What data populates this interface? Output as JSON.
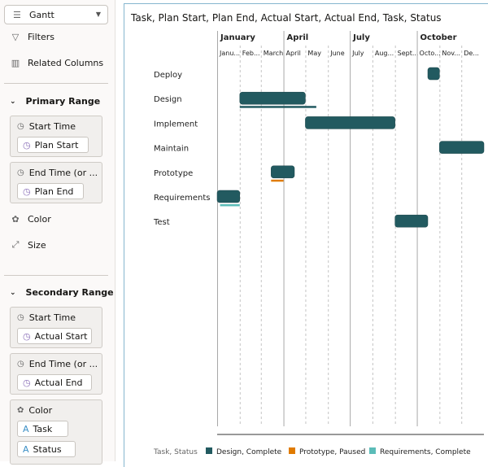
{
  "sidebar": {
    "chart_type": "Gantt",
    "chart_type_icon": "gantt-icon",
    "filters": "Filters",
    "related_columns": "Related Columns",
    "primary": {
      "title": "Primary Range",
      "start_label": "Start Time",
      "start_value": "Plan Start",
      "end_label": "End Time (or ...",
      "end_value": "Plan End",
      "color": "Color",
      "size": "Size"
    },
    "secondary": {
      "title": "Secondary Range",
      "start_label": "Start Time",
      "start_value": "Actual Start",
      "end_label": "End Time (or ...",
      "end_value": "Actual End",
      "color": "Color",
      "color_values": [
        "Task",
        "Status"
      ]
    }
  },
  "chart_data": {
    "type": "gantt",
    "title": "Task, Plan Start, Plan End, Actual Start, Actual End, Task, Status",
    "quarter_labels": [
      "January",
      "April",
      "July",
      "October"
    ],
    "month_labels": [
      "Janu...",
      "Feb...",
      "March",
      "April",
      "May",
      "June",
      "July",
      "Aug...",
      "Sept...",
      "Octo...",
      "Nov...",
      "De..."
    ],
    "tasks": [
      {
        "name": "Deploy",
        "plan": [
          "10-16",
          "10-31"
        ]
      },
      {
        "name": "Design",
        "plan": [
          "02-01",
          "04-30"
        ],
        "actual": [
          "02-01",
          "05-15"
        ],
        "color_key": 0
      },
      {
        "name": "Implement",
        "plan": [
          "05-01",
          "08-31"
        ]
      },
      {
        "name": "Maintain",
        "plan": [
          "11-01",
          "12-31"
        ]
      },
      {
        "name": "Prototype",
        "plan": [
          "03-15",
          "04-15"
        ],
        "actual": [
          "03-15",
          "03-31"
        ],
        "color_key": 1
      },
      {
        "name": "Requirements",
        "plan": [
          "01-01",
          "01-31"
        ],
        "actual": [
          "01-05",
          "01-31"
        ],
        "color_key": 2
      },
      {
        "name": "Test",
        "plan": [
          "09-01",
          "10-15"
        ]
      }
    ],
    "bar_color": "#225a60",
    "legend": {
      "title": "Task, Status",
      "position": "bottom",
      "items": [
        {
          "label": "Design, Complete",
          "color": "#225a60"
        },
        {
          "label": "Prototype, Paused",
          "color": "#e07b00"
        },
        {
          "label": "Requirements, Complete",
          "color": "#5bbcb8"
        }
      ]
    }
  }
}
